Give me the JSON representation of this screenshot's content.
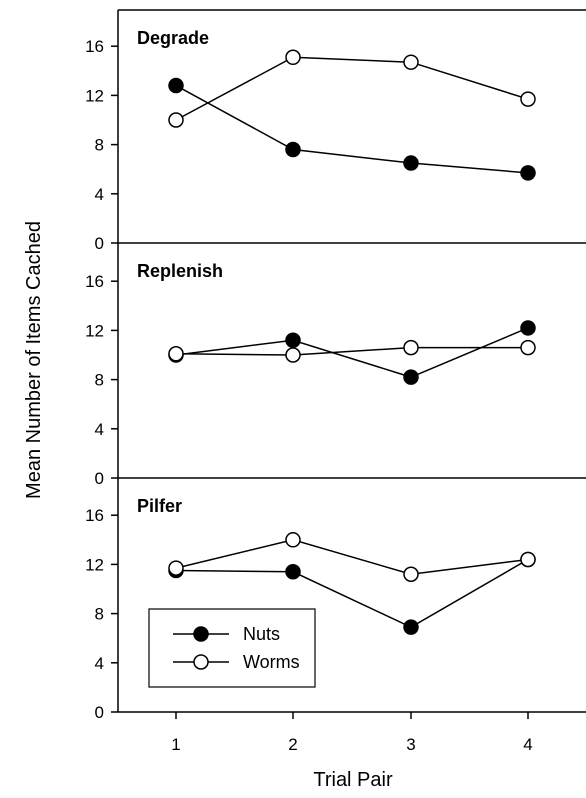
{
  "chart_data": [
    {
      "type": "line",
      "title": "Degrade",
      "xlabel": "Trial Pair",
      "ylabel": "Mean Number of Items Cached",
      "x": [
        1,
        2,
        3,
        4
      ],
      "ylim": [
        0,
        18
      ],
      "yticks": [
        "0",
        "4",
        "8",
        "12",
        "16"
      ],
      "series": [
        {
          "name": "Nuts",
          "marker": "filled-circle",
          "values": [
            12.8,
            7.6,
            6.5,
            5.7
          ]
        },
        {
          "name": "Worms",
          "marker": "open-circle",
          "values": [
            10.0,
            15.1,
            14.7,
            11.7
          ]
        }
      ]
    },
    {
      "type": "line",
      "title": "Replenish",
      "x": [
        1,
        2,
        3,
        4
      ],
      "ylim": [
        0,
        18
      ],
      "yticks": [
        "0",
        "4",
        "8",
        "12",
        "16"
      ],
      "series": [
        {
          "name": "Nuts",
          "marker": "filled-circle",
          "values": [
            10.0,
            11.2,
            8.2,
            12.2
          ]
        },
        {
          "name": "Worms",
          "marker": "open-circle",
          "values": [
            10.1,
            10.0,
            10.6,
            10.6
          ]
        }
      ]
    },
    {
      "type": "line",
      "title": "Pilfer",
      "x": [
        1,
        2,
        3,
        4
      ],
      "ylim": [
        0,
        18
      ],
      "yticks": [
        "0",
        "4",
        "8",
        "12",
        "16"
      ],
      "xticks": [
        "1",
        "2",
        "3",
        "4"
      ],
      "legend": {
        "placement": "bottom-left",
        "entries": [
          "Nuts",
          "Worms"
        ]
      },
      "series": [
        {
          "name": "Nuts",
          "marker": "filled-circle",
          "values": [
            11.5,
            11.4,
            6.9,
            12.4
          ]
        },
        {
          "name": "Worms",
          "marker": "open-circle",
          "values": [
            11.7,
            14.0,
            11.2,
            12.4
          ]
        }
      ]
    }
  ]
}
